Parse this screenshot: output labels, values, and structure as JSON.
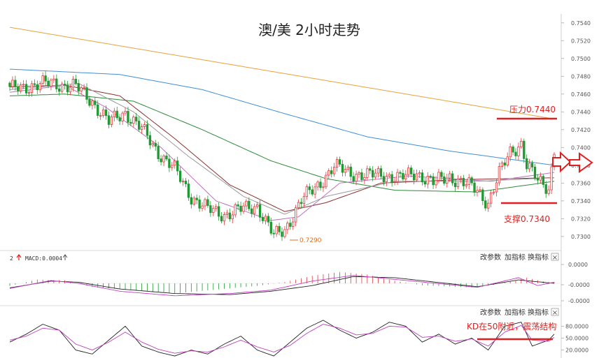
{
  "chart_data": [
    {
      "type": "candlestick",
      "title": "澳/美 2小时走势",
      "ylim": [
        0.7285,
        0.755
      ],
      "y_ticks": [
        "0.7540",
        "0.7520",
        "0.7500",
        "0.7480",
        "0.7460",
        "0.7440",
        "0.7420",
        "0.7400",
        "0.7380",
        "0.7360",
        "0.7340",
        "0.7320",
        "0.7300"
      ],
      "y_tick_values": [
        0.754,
        0.752,
        0.75,
        0.748,
        0.746,
        0.744,
        0.742,
        0.74,
        0.738,
        0.736,
        0.734,
        0.732,
        0.73
      ],
      "close_anchors": [
        [
          0,
          0.7465
        ],
        [
          8,
          0.747
        ],
        [
          16,
          0.7472
        ],
        [
          24,
          0.7468
        ],
        [
          30,
          0.7452
        ],
        [
          36,
          0.7428
        ],
        [
          42,
          0.744
        ],
        [
          48,
          0.742
        ],
        [
          54,
          0.7395
        ],
        [
          60,
          0.7375
        ],
        [
          66,
          0.7345
        ],
        [
          72,
          0.733
        ],
        [
          78,
          0.7325
        ],
        [
          84,
          0.733
        ],
        [
          90,
          0.7335
        ],
        [
          96,
          0.73
        ],
        [
          100,
          0.7308
        ],
        [
          106,
          0.734
        ],
        [
          112,
          0.7358
        ],
        [
          118,
          0.7378
        ],
        [
          124,
          0.7372
        ],
        [
          130,
          0.7368
        ],
        [
          136,
          0.737
        ],
        [
          142,
          0.7365
        ],
        [
          148,
          0.7372
        ],
        [
          154,
          0.736
        ],
        [
          160,
          0.7368
        ],
        [
          166,
          0.7358
        ],
        [
          170,
          0.7352
        ],
        [
          174,
          0.7338
        ],
        [
          178,
          0.737
        ],
        [
          182,
          0.7395
        ],
        [
          186,
          0.7405
        ],
        [
          188,
          0.738
        ],
        [
          192,
          0.7362
        ],
        [
          196,
          0.7355
        ],
        [
          198,
          0.7398
        ]
      ],
      "ma_series": [
        {
          "color": "#e8a33c",
          "values": [
            [
              0,
              0.7535
            ],
            [
              198,
              0.7432
            ]
          ]
        },
        {
          "color": "#3f8fd6",
          "values": [
            [
              0,
              0.7488
            ],
            [
              40,
              0.7482
            ],
            [
              70,
              0.7465
            ],
            [
              100,
              0.7438
            ],
            [
              130,
              0.7412
            ],
            [
              160,
              0.7396
            ],
            [
              198,
              0.738
            ]
          ]
        },
        {
          "color": "#2e8b3a",
          "values": [
            [
              0,
              0.7458
            ],
            [
              20,
              0.746
            ],
            [
              45,
              0.7452
            ],
            [
              70,
              0.742
            ],
            [
              95,
              0.7385
            ],
            [
              115,
              0.7365
            ],
            [
              140,
              0.7352
            ],
            [
              170,
              0.735
            ],
            [
              198,
              0.7362
            ]
          ]
        },
        {
          "color": "#8b2f2f",
          "values": [
            [
              0,
              0.7468
            ],
            [
              20,
              0.747
            ],
            [
              40,
              0.7458
            ],
            [
              60,
              0.741
            ],
            [
              80,
              0.7358
            ],
            [
              100,
              0.7328
            ],
            [
              115,
              0.7338
            ],
            [
              135,
              0.736
            ],
            [
              165,
              0.7364
            ],
            [
              198,
              0.7366
            ]
          ]
        },
        {
          "color": "#c070c0",
          "values": [
            [
              0,
              0.7462
            ],
            [
              20,
              0.747
            ],
            [
              35,
              0.7445
            ],
            [
              55,
              0.74
            ],
            [
              75,
              0.734
            ],
            [
              95,
              0.7318
            ],
            [
              105,
              0.7322
            ],
            [
              120,
              0.736
            ],
            [
              145,
              0.7368
            ],
            [
              175,
              0.7362
            ],
            [
              198,
              0.7372
            ]
          ]
        },
        {
          "color": "#9a9a9a",
          "values": [
            [
              0,
              0.7465
            ],
            [
              25,
              0.7472
            ],
            [
              45,
              0.744
            ],
            [
              65,
              0.739
            ],
            [
              85,
              0.7345
            ],
            [
              100,
              0.7325
            ],
            [
              115,
              0.7345
            ],
            [
              140,
              0.7362
            ],
            [
              170,
              0.7362
            ],
            [
              198,
              0.7366
            ]
          ]
        }
      ],
      "annotations": [
        {
          "text": "压力0.7440",
          "y": 0.7437,
          "color": "#e02020"
        },
        {
          "text": "支撑0.7340",
          "y": 0.7338,
          "color": "#e02020"
        },
        {
          "text": "0.7290",
          "y": 0.729,
          "color": "#e07020"
        }
      ],
      "low_mark_index": 98
    },
    {
      "type": "bar+line",
      "name": "MACD",
      "header_label": "MACD:0.0004",
      "header_prefix": "2",
      "ticks": [
        "0.0000",
        "-0.0000",
        "-0.0000"
      ],
      "hist_anchors": [
        [
          0,
          -0.2
        ],
        [
          10,
          0.3
        ],
        [
          20,
          0.25
        ],
        [
          30,
          -0.3
        ],
        [
          45,
          -0.55
        ],
        [
          60,
          -0.8
        ],
        [
          75,
          -0.5
        ],
        [
          90,
          -0.2
        ],
        [
          100,
          0.1
        ],
        [
          110,
          0.6
        ],
        [
          120,
          0.9
        ],
        [
          130,
          0.7
        ],
        [
          140,
          0.2
        ],
        [
          150,
          -0.15
        ],
        [
          160,
          -0.25
        ],
        [
          170,
          -0.35
        ],
        [
          180,
          0.05
        ],
        [
          188,
          0.45
        ],
        [
          194,
          0.15
        ],
        [
          198,
          0.1
        ]
      ],
      "line1": [
        [
          0,
          -0.4
        ],
        [
          15,
          0.2
        ],
        [
          25,
          0.1
        ],
        [
          40,
          -0.5
        ],
        [
          60,
          -0.9
        ],
        [
          80,
          -1.0
        ],
        [
          95,
          -0.7
        ],
        [
          110,
          -0.2
        ],
        [
          125,
          0.6
        ],
        [
          140,
          0.5
        ],
        [
          155,
          0.1
        ],
        [
          170,
          -0.3
        ],
        [
          185,
          0.3
        ],
        [
          198,
          0.0
        ]
      ],
      "line2": [
        [
          0,
          -0.45
        ],
        [
          15,
          0.25
        ],
        [
          25,
          0.0
        ],
        [
          40,
          -0.7
        ],
        [
          60,
          -1.1
        ],
        [
          80,
          -0.9
        ],
        [
          95,
          -0.6
        ],
        [
          110,
          0.2
        ],
        [
          125,
          0.7
        ],
        [
          140,
          0.35
        ],
        [
          155,
          0.0
        ],
        [
          170,
          -0.35
        ],
        [
          185,
          0.5
        ],
        [
          192,
          -0.2
        ],
        [
          198,
          0.1
        ]
      ]
    },
    {
      "type": "line",
      "name": "KD",
      "ticks": [
        "80.0000",
        "50.0000",
        "20.0000"
      ],
      "tick_values": [
        80,
        50,
        20
      ],
      "ylim": [
        0,
        100
      ],
      "k_line": [
        [
          0,
          40
        ],
        [
          6,
          60
        ],
        [
          12,
          85
        ],
        [
          18,
          70
        ],
        [
          24,
          20
        ],
        [
          30,
          10
        ],
        [
          36,
          45
        ],
        [
          42,
          80
        ],
        [
          48,
          30
        ],
        [
          54,
          15
        ],
        [
          60,
          5
        ],
        [
          66,
          20
        ],
        [
          72,
          10
        ],
        [
          78,
          35
        ],
        [
          84,
          55
        ],
        [
          90,
          20
        ],
        [
          96,
          5
        ],
        [
          102,
          40
        ],
        [
          108,
          75
        ],
        [
          114,
          95
        ],
        [
          120,
          70
        ],
        [
          126,
          50
        ],
        [
          132,
          65
        ],
        [
          138,
          90
        ],
        [
          144,
          80
        ],
        [
          150,
          40
        ],
        [
          156,
          60
        ],
        [
          162,
          35
        ],
        [
          168,
          50
        ],
        [
          174,
          20
        ],
        [
          180,
          80
        ],
        [
          186,
          90
        ],
        [
          190,
          30
        ],
        [
          196,
          45
        ],
        [
          198,
          60
        ]
      ],
      "d_line": [
        [
          0,
          45
        ],
        [
          6,
          55
        ],
        [
          12,
          75
        ],
        [
          18,
          70
        ],
        [
          24,
          35
        ],
        [
          30,
          20
        ],
        [
          36,
          40
        ],
        [
          42,
          65
        ],
        [
          48,
          40
        ],
        [
          54,
          22
        ],
        [
          60,
          12
        ],
        [
          66,
          18
        ],
        [
          72,
          15
        ],
        [
          78,
          28
        ],
        [
          84,
          45
        ],
        [
          90,
          28
        ],
        [
          96,
          15
        ],
        [
          102,
          32
        ],
        [
          108,
          62
        ],
        [
          114,
          85
        ],
        [
          120,
          75
        ],
        [
          126,
          58
        ],
        [
          132,
          62
        ],
        [
          138,
          80
        ],
        [
          144,
          78
        ],
        [
          150,
          52
        ],
        [
          156,
          55
        ],
        [
          162,
          42
        ],
        [
          168,
          48
        ],
        [
          174,
          30
        ],
        [
          180,
          65
        ],
        [
          186,
          82
        ],
        [
          190,
          45
        ],
        [
          196,
          42
        ],
        [
          198,
          52
        ]
      ],
      "annotation": "KD在50附近，震荡结构"
    }
  ],
  "panel_buttons": {
    "change_params": "改参数",
    "add_indicator": "加指标",
    "switch_indicator": "换指标",
    "close_symbol": "×"
  },
  "colors": {
    "up": "#e23c3c",
    "down": "#1f9a32",
    "axis_text": "#555555",
    "panel_border": "#d8d8d8",
    "annotation_red": "#e02020"
  },
  "icons": [
    "right-arrow-icon",
    "right-arrow-outline-icon",
    "up-arrow-icon",
    "close-icon"
  ]
}
